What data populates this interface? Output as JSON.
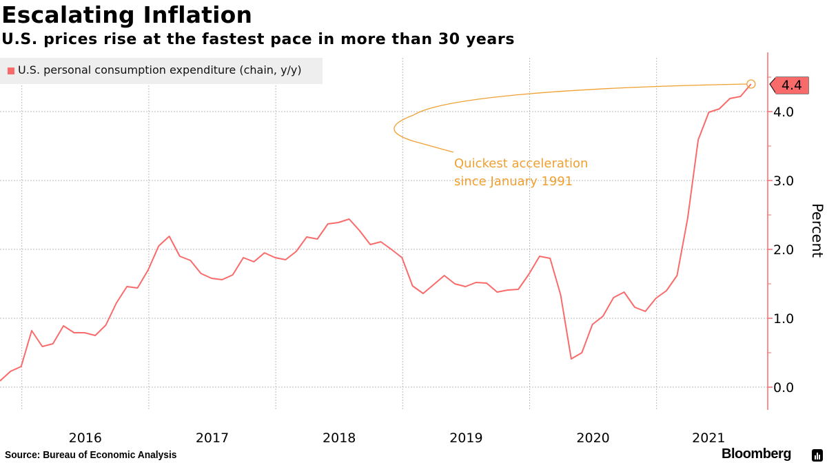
{
  "header": {
    "title": "Escalating Inflation",
    "subtitle": "U.S. prices rise at the fastest pace in more than 30 years"
  },
  "footer": {
    "source": "Source: Bureau of Economic Analysis",
    "brand": "Bloomberg"
  },
  "colors": {
    "series": "#f96a6a",
    "annotation": "#f0a030",
    "grid": "#bbbbbb",
    "legend_bg": "#eeeeee"
  },
  "chart_data": {
    "type": "line",
    "title": "Escalating Inflation",
    "subtitle": "U.S. prices rise at the fastest pace in more than 30 years",
    "ylabel": "Percent",
    "xlabel": "",
    "ylim": [
      -0.3,
      4.9
    ],
    "y_ticks": [
      "0.0",
      "1.0",
      "2.0",
      "3.0",
      "4.0"
    ],
    "x_tick_labels": [
      "2016",
      "2017",
      "2018",
      "2019",
      "2020",
      "2021"
    ],
    "grid": true,
    "legend_position": "top-left",
    "y_axis_side": "right",
    "start_month": "2015-10",
    "end_month": "2021-09",
    "series": [
      {
        "name": "U.S. personal consumption expenditure (chain, y/y)",
        "values": [
          0.09,
          0.23,
          0.3,
          0.82,
          0.59,
          0.63,
          0.89,
          0.79,
          0.79,
          0.75,
          0.9,
          1.22,
          1.46,
          1.44,
          1.7,
          2.05,
          2.19,
          1.9,
          1.84,
          1.65,
          1.58,
          1.56,
          1.63,
          1.88,
          1.82,
          1.95,
          1.88,
          1.85,
          1.97,
          2.18,
          2.15,
          2.37,
          2.39,
          2.44,
          2.27,
          2.07,
          2.11,
          2.0,
          1.88,
          1.47,
          1.36,
          1.49,
          1.62,
          1.5,
          1.46,
          1.52,
          1.51,
          1.38,
          1.41,
          1.42,
          1.64,
          1.9,
          1.87,
          1.34,
          0.41,
          0.5,
          0.91,
          1.03,
          1.3,
          1.38,
          1.16,
          1.1,
          1.29,
          1.4,
          1.62,
          2.45,
          3.59,
          3.99,
          4.04,
          4.19,
          4.22,
          4.4
        ]
      }
    ],
    "last_value_label": "4.4",
    "annotation": "Quickest acceleration\nsince January 1991",
    "annotation_lines": [
      "Quickest acceleration",
      "since January 1991"
    ]
  }
}
